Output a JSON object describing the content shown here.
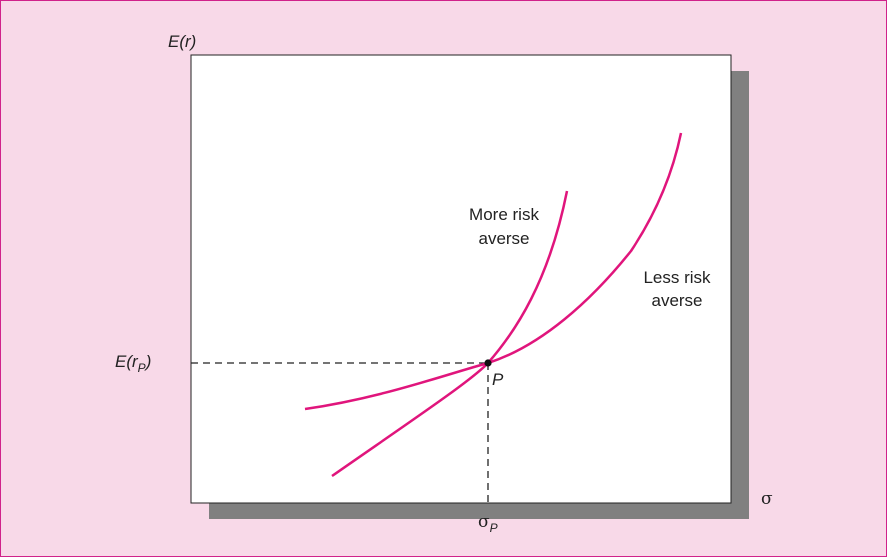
{
  "chart_data": {
    "type": "line",
    "title": "",
    "ylabel": "E(r)",
    "xlabel": "σ",
    "point": {
      "label": "P",
      "x_label": "σ",
      "x_label_sub": "P",
      "y_label": "E(r",
      "y_label_sub": "P",
      "y_label_close": ")"
    },
    "series": [
      {
        "name": "More risk averse",
        "label_lines": [
          "More risk",
          "averse"
        ],
        "color": "#e0157c"
      },
      {
        "name": "Less risk averse",
        "label_lines": [
          "Less risk",
          "averse"
        ],
        "color": "#e0157c"
      }
    ],
    "grid": false,
    "legend": "none",
    "ticks": "none"
  },
  "colors": {
    "background": "#f8d9e8",
    "border": "#d0228a",
    "plot": "#ffffff",
    "shadow": "#808080",
    "curve": "#e0157c"
  }
}
